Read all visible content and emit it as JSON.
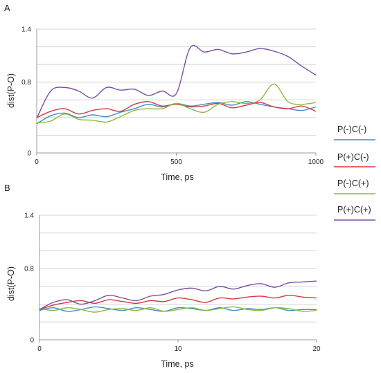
{
  "panels": [
    {
      "letter": "A",
      "xlabel": "Time, ps",
      "ylabel": "dist(P-O)",
      "xticks": [
        "0",
        "500",
        "1000"
      ],
      "yticks": [
        "0",
        "0.8",
        "1.4"
      ]
    },
    {
      "letter": "B",
      "xlabel": "Time, ps",
      "ylabel": "dist(P-O)",
      "xticks": [
        "0",
        "10",
        "20"
      ],
      "yticks": [
        "0",
        "0.8",
        "1.4"
      ]
    }
  ],
  "legend": [
    {
      "label": "P(-)C(-)",
      "color": "#3d8ec9"
    },
    {
      "label": "P(+)C(-)",
      "color": "#d6383b"
    },
    {
      "label": "P(-)C(+)",
      "color": "#8db83a"
    },
    {
      "label": "P(+)C(+)",
      "color": "#7a4fa3"
    }
  ],
  "chart_data": [
    {
      "type": "line",
      "panel": "A",
      "xlabel": "Time, ps",
      "ylabel": "dist(P-O)",
      "xlim": [
        0,
        1000
      ],
      "ylim": [
        0,
        1.4
      ],
      "grid": true,
      "legend_position": "right",
      "x": [
        0,
        50,
        100,
        150,
        200,
        250,
        300,
        350,
        400,
        450,
        500,
        550,
        600,
        650,
        700,
        750,
        800,
        850,
        900,
        950,
        1000
      ],
      "series": [
        {
          "name": "P(-)C(-)",
          "color": "#3d8ec9",
          "values": [
            0.33,
            0.42,
            0.45,
            0.4,
            0.43,
            0.41,
            0.46,
            0.5,
            0.55,
            0.52,
            0.56,
            0.53,
            0.55,
            0.57,
            0.54,
            0.58,
            0.55,
            0.52,
            0.5,
            0.48,
            0.52
          ]
        },
        {
          "name": "P(+)C(-)",
          "color": "#d6383b",
          "values": [
            0.4,
            0.47,
            0.5,
            0.44,
            0.48,
            0.5,
            0.47,
            0.55,
            0.58,
            0.53,
            0.55,
            0.52,
            0.53,
            0.56,
            0.51,
            0.54,
            0.57,
            0.52,
            0.5,
            0.53,
            0.47
          ]
        },
        {
          "name": "P(-)C(+)",
          "color": "#8db83a",
          "values": [
            0.34,
            0.36,
            0.44,
            0.38,
            0.37,
            0.35,
            0.41,
            0.48,
            0.5,
            0.5,
            0.56,
            0.5,
            0.46,
            0.55,
            0.58,
            0.56,
            0.6,
            0.78,
            0.58,
            0.55,
            0.57
          ]
        },
        {
          "name": "P(+)C(+)",
          "color": "#7a4fa3",
          "values": [
            0.39,
            0.7,
            0.74,
            0.7,
            0.62,
            0.74,
            0.71,
            0.72,
            0.65,
            0.7,
            0.67,
            1.19,
            1.14,
            1.17,
            1.12,
            1.14,
            1.18,
            1.15,
            1.09,
            0.98,
            0.88
          ]
        }
      ]
    },
    {
      "type": "line",
      "panel": "B",
      "xlabel": "Time, ps",
      "ylabel": "dist(P-O)",
      "xlim": [
        0,
        20
      ],
      "ylim": [
        0,
        1.4
      ],
      "grid": true,
      "legend_position": "right",
      "x": [
        0,
        1,
        2,
        3,
        4,
        5,
        6,
        7,
        8,
        9,
        10,
        11,
        12,
        13,
        14,
        15,
        16,
        17,
        18,
        19,
        20
      ],
      "series": [
        {
          "name": "P(-)C(-)",
          "color": "#3d8ec9",
          "values": [
            0.33,
            0.36,
            0.32,
            0.34,
            0.37,
            0.35,
            0.33,
            0.36,
            0.34,
            0.32,
            0.36,
            0.35,
            0.33,
            0.36,
            0.33,
            0.35,
            0.34,
            0.36,
            0.33,
            0.34,
            0.34
          ]
        },
        {
          "name": "P(+)C(-)",
          "color": "#d6383b",
          "values": [
            0.34,
            0.39,
            0.42,
            0.44,
            0.41,
            0.45,
            0.43,
            0.41,
            0.44,
            0.43,
            0.47,
            0.45,
            0.42,
            0.47,
            0.46,
            0.48,
            0.49,
            0.47,
            0.5,
            0.48,
            0.47
          ]
        },
        {
          "name": "P(-)C(+)",
          "color": "#8db83a",
          "values": [
            0.35,
            0.33,
            0.36,
            0.34,
            0.31,
            0.34,
            0.35,
            0.33,
            0.36,
            0.32,
            0.34,
            0.36,
            0.33,
            0.35,
            0.37,
            0.34,
            0.33,
            0.36,
            0.35,
            0.32,
            0.33
          ]
        },
        {
          "name": "P(+)C(+)",
          "color": "#7a4fa3",
          "values": [
            0.34,
            0.42,
            0.45,
            0.4,
            0.44,
            0.5,
            0.47,
            0.44,
            0.49,
            0.51,
            0.56,
            0.58,
            0.55,
            0.6,
            0.57,
            0.61,
            0.63,
            0.59,
            0.64,
            0.65,
            0.66
          ]
        }
      ]
    }
  ]
}
